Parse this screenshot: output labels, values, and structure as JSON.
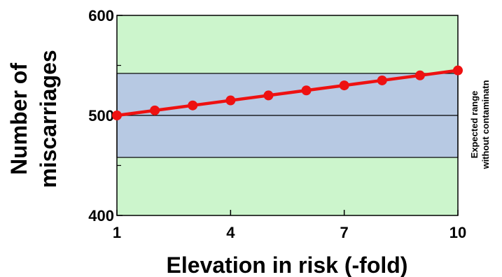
{
  "chart_data": {
    "type": "line",
    "title": "",
    "xlabel": "Elevation in risk (-fold)",
    "ylabel_lines": [
      "Number of",
      "miscarriages"
    ],
    "xlim": [
      1,
      10
    ],
    "ylim": [
      400,
      600
    ],
    "x_ticks": [
      1,
      4,
      7,
      10
    ],
    "y_ticks": [
      400,
      500,
      600
    ],
    "y_minor_ticks": [
      450,
      550
    ],
    "series": [
      {
        "x": [
          1,
          2,
          3,
          4,
          5,
          6,
          7,
          8,
          9,
          10
        ],
        "y": [
          500,
          505,
          510,
          515,
          520,
          525,
          530,
          535,
          540,
          545
        ]
      }
    ],
    "expected_range": {
      "low": 458,
      "high": 542,
      "mean": 500,
      "label_lines": [
        "Expected range",
        "without contaminatn"
      ]
    },
    "grid": false,
    "legend": "none",
    "colors": {
      "background": "#ccf5cc",
      "band": "#b7c9e3",
      "line": "#ee1111",
      "marker": "#ee1111"
    }
  }
}
